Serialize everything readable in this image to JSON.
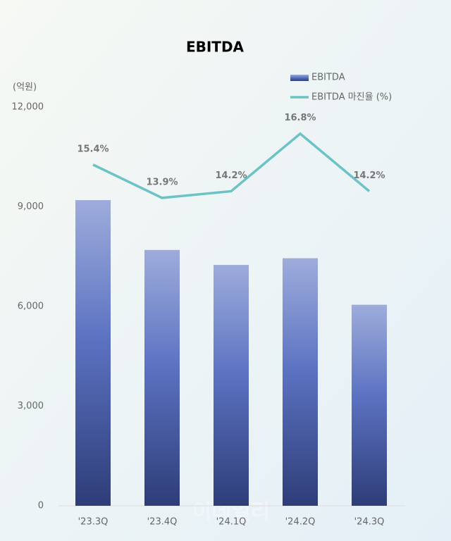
{
  "chart_data": {
    "type": "bar_line",
    "title": "EBITDA",
    "y_unit": "(억원)",
    "watermark": "이데일리",
    "categories": [
      "'23.3Q",
      "'23.4Q",
      "'24.1Q",
      "'24.2Q",
      "'24.3Q"
    ],
    "series": [
      {
        "name": "EBITDA",
        "type": "bar",
        "color": "#5a6fbf",
        "values": [
          9200,
          7700,
          7250,
          7450,
          6050
        ]
      },
      {
        "name": "EBITDA 마진율 (%)",
        "type": "line",
        "axis": "y2",
        "color": "#6cc3c6",
        "values": [
          15.4,
          13.9,
          14.2,
          16.8,
          14.2
        ],
        "value_labels": [
          "15.4%",
          "13.9%",
          "14.2%",
          "16.8%",
          "14.2%"
        ]
      }
    ],
    "ylim": [
      0,
      12000
    ],
    "yticks": [
      {
        "value": 0,
        "label": "0"
      },
      {
        "value": 3000,
        "label": "3,000"
      },
      {
        "value": 6000,
        "label": "6,000"
      },
      {
        "value": 9000,
        "label": "9,000"
      },
      {
        "value": 12000,
        "label": "12,000"
      }
    ],
    "y2lim": [
      0,
      18
    ],
    "legend": "top-right"
  }
}
